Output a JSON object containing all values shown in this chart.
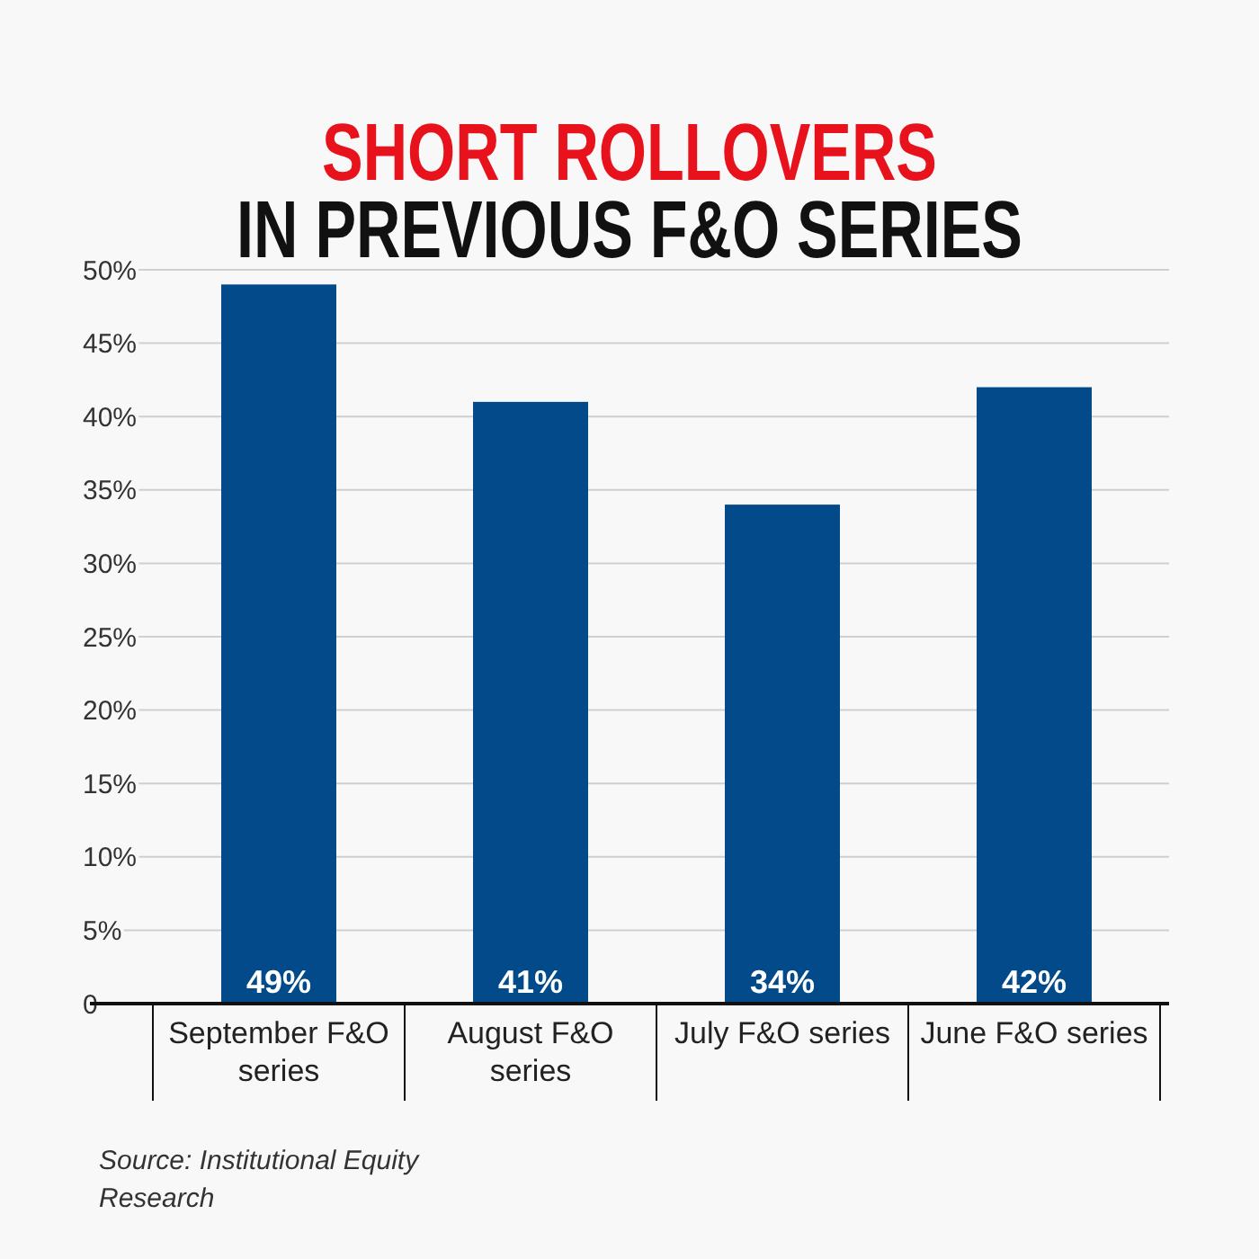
{
  "chart_data": {
    "type": "bar",
    "title": "SHORT ROLLOVERS",
    "subtitle": "IN PREVIOUS F&O SERIES",
    "categories": [
      "September F&O series",
      "August F&O series",
      "July F&O series",
      "June F&O series"
    ],
    "values": [
      49,
      41,
      34,
      42
    ],
    "color": "#034a8a",
    "value_labels": [
      "49%",
      "41%",
      "34%",
      "42%"
    ],
    "ylim": [
      0,
      50
    ],
    "yticks": [
      0,
      {
        "value": 5,
        "label": "5%"
      },
      {
        "value": 10,
        "label": "10%"
      },
      {
        "value": 15,
        "label": "15%"
      },
      {
        "value": 20,
        "label": "20%"
      },
      {
        "value": 25,
        "label": "25%"
      },
      {
        "value": 30,
        "label": "30%"
      },
      {
        "value": 35,
        "label": "35%"
      },
      {
        "value": 40,
        "label": "40%"
      },
      {
        "value": 45,
        "label": "45%"
      },
      {
        "value": 50,
        "label": "50%"
      }
    ],
    "grid": "y",
    "annotations": [
      "Source: Institutional Equity Research"
    ]
  }
}
